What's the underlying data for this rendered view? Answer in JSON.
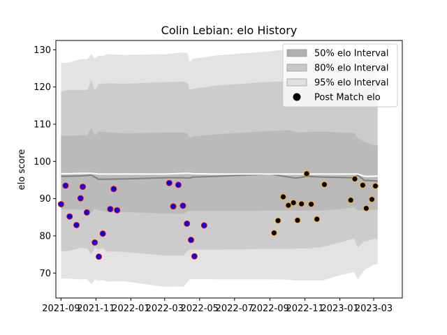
{
  "chart_data": {
    "type": "scatter",
    "title": "Colin Lebian: elo History",
    "xlabel": "",
    "ylabel": "elo score",
    "xlim": [
      "2021-08-23",
      "2023-04-20"
    ],
    "ylim": [
      63.3,
      132.5
    ],
    "x_ticks": [
      "2021-09-01",
      "2021-11-01",
      "2022-01-01",
      "2022-03-01",
      "2022-05-01",
      "2022-07-01",
      "2022-09-01",
      "2022-11-01",
      "2023-01-01",
      "2023-03-01"
    ],
    "x_tick_labels": [
      "2021-09",
      "2021-11",
      "2022-01",
      "2022-03",
      "2022-05",
      "2022-07",
      "2022-09",
      "2022-11",
      "2023-01",
      "2023-03"
    ],
    "y_ticks": [
      70,
      80,
      90,
      100,
      110,
      120,
      130
    ],
    "grid": false,
    "legend": {
      "placement": "top-right",
      "entries": [
        "50% elo Interval",
        "80% elo Interval",
        "95% elo Interval",
        "Post Match elo"
      ]
    },
    "bands": [
      {
        "name": "95% elo Interval",
        "color": "#e3e3e3",
        "x": [
          "2021-09-01",
          "2021-09-13",
          "2021-10-06",
          "2021-10-17",
          "2021-10-24",
          "2021-10-30",
          "2021-11-06",
          "2021-11-13",
          "2021-11-20",
          "2021-12-20",
          "2022-03-01",
          "2022-04-03",
          "2022-04-10",
          "2022-04-14",
          "2022-04-19",
          "2022-06-01",
          "2022-09-01",
          "2022-10-06",
          "2022-10-16",
          "2022-11-06",
          "2022-12-01",
          "2023-01-01",
          "2023-01-26",
          "2023-02-01",
          "2023-02-13",
          "2023-03-01",
          "2023-03-08"
        ],
        "upper": [
          126.5,
          126.5,
          127.5,
          127.5,
          128.8,
          127.7,
          128.4,
          128.3,
          128.8,
          128.6,
          128.8,
          129.3,
          129.1,
          126.6,
          127.6,
          128.5,
          129.6,
          130.2,
          128.8,
          128.9,
          129.0,
          129.3,
          129.5,
          127.8,
          126.8,
          127.5,
          127.5
        ],
        "lower": [
          68.5,
          68.5,
          68.3,
          68.3,
          67.0,
          68.3,
          67.9,
          68.1,
          67.7,
          67.8,
          66.3,
          66.4,
          67.6,
          68.3,
          68.4,
          68.3,
          68.3,
          68.2,
          68.0,
          68.0,
          68.0,
          69.4,
          70.3,
          68.3,
          70.8,
          72.2,
          72.4
        ]
      },
      {
        "name": "80% elo Interval",
        "color": "#cccccc",
        "x": [
          "2021-09-01",
          "2021-09-13",
          "2021-10-06",
          "2021-10-17",
          "2021-10-24",
          "2021-10-30",
          "2021-11-06",
          "2021-11-13",
          "2021-11-20",
          "2021-12-20",
          "2022-03-01",
          "2022-04-03",
          "2022-04-10",
          "2022-04-14",
          "2022-04-19",
          "2022-06-01",
          "2022-09-01",
          "2022-10-06",
          "2022-10-16",
          "2022-11-06",
          "2022-12-01",
          "2023-01-01",
          "2023-01-26",
          "2023-02-01",
          "2023-02-13",
          "2023-03-01",
          "2023-03-08"
        ],
        "upper": [
          118.8,
          119.2,
          119.2,
          119.2,
          121.9,
          119.0,
          120.8,
          120.9,
          121.0,
          120.9,
          121.3,
          121.5,
          121.0,
          119.2,
          119.5,
          120.4,
          121.4,
          121.5,
          120.8,
          120.8,
          121.0,
          121.1,
          121.0,
          120.3,
          119.9,
          120.4,
          120.4
        ],
        "lower": [
          75.9,
          75.9,
          76.8,
          76.5,
          75.0,
          76.7,
          76.3,
          76.7,
          75.8,
          75.7,
          74.7,
          74.7,
          76.0,
          76.3,
          76.3,
          76.3,
          76.5,
          76.5,
          76.6,
          76.6,
          77.0,
          78.2,
          79.3,
          76.9,
          78.5,
          79.2,
          79.2
        ]
      },
      {
        "name": "50% elo Interval",
        "color": "#bababa",
        "x": [
          "2021-09-01",
          "2021-09-13",
          "2021-10-06",
          "2021-10-17",
          "2021-10-24",
          "2021-10-30",
          "2021-11-06",
          "2021-11-13",
          "2021-11-20",
          "2021-12-20",
          "2022-03-01",
          "2022-04-03",
          "2022-04-10",
          "2022-04-14",
          "2022-04-19",
          "2022-06-01",
          "2022-09-01",
          "2022-10-06",
          "2022-10-16",
          "2022-11-06",
          "2022-12-01",
          "2023-01-01",
          "2023-01-26",
          "2023-02-01",
          "2023-02-13",
          "2023-03-01",
          "2023-03-08"
        ],
        "upper": [
          106.9,
          106.9,
          107.0,
          107.0,
          109.0,
          106.9,
          108.1,
          107.9,
          107.9,
          107.5,
          107.8,
          107.8,
          107.5,
          106.3,
          106.7,
          107.3,
          108.2,
          108.4,
          107.8,
          107.9,
          108.0,
          107.8,
          107.7,
          106.4,
          105.3,
          104.3,
          104.3
        ],
        "lower": [
          87.1,
          87.2,
          87.0,
          87.1,
          86.1,
          87.4,
          86.8,
          86.7,
          86.4,
          86.4,
          86.0,
          85.9,
          86.6,
          86.6,
          86.8,
          86.7,
          86.8,
          86.8,
          86.8,
          86.8,
          86.8,
          87.2,
          87.7,
          86.9,
          86.8,
          87.0,
          87.0
        ]
      }
    ],
    "mean_line": {
      "color": "#808080",
      "x": [
        "2021-09-01",
        "2021-09-13",
        "2021-10-06",
        "2021-10-24",
        "2021-11-06",
        "2021-12-20",
        "2022-03-01",
        "2022-04-03",
        "2022-04-14",
        "2022-04-19",
        "2022-06-01",
        "2022-09-01",
        "2022-10-16",
        "2022-11-06",
        "2022-12-01",
        "2023-01-01",
        "2023-01-26",
        "2023-02-01",
        "2023-02-13",
        "2023-03-01",
        "2023-03-08"
      ],
      "y": [
        96.0,
        96.0,
        96.1,
        96.3,
        95.2,
        95.3,
        95.6,
        95.6,
        95.5,
        95.8,
        96.0,
        96.6,
        95.5,
        96.0,
        95.8,
        95.7,
        95.6,
        96.3,
        94.9,
        94.8,
        94.7
      ]
    },
    "upper_line": {
      "color": "#ffffff",
      "x": [
        "2021-09-01",
        "2021-09-13",
        "2021-10-06",
        "2021-10-24",
        "2021-11-06",
        "2021-12-20",
        "2022-03-01",
        "2022-04-03",
        "2022-04-14",
        "2022-04-19",
        "2022-06-01",
        "2022-09-01",
        "2022-10-16",
        "2022-11-06",
        "2022-12-01",
        "2023-01-01",
        "2023-01-26",
        "2023-02-01",
        "2023-02-13",
        "2023-03-01",
        "2023-03-08"
      ],
      "y": [
        96.7,
        96.7,
        96.8,
        96.8,
        96.6,
        96.6,
        96.6,
        96.8,
        96.8,
        96.7,
        96.6,
        96.6,
        96.6,
        96.6,
        96.6,
        96.6,
        96.6,
        96.6,
        96.0,
        96.0,
        96.1
      ]
    },
    "series": [
      {
        "name": "Post Match elo",
        "marker_fill": "#0000ee",
        "marker_edge": "#ff0000",
        "x": [
          "2021-09-01",
          "2021-09-09",
          "2021-09-16",
          "2021-09-28",
          "2021-10-05",
          "2021-10-09",
          "2021-10-16",
          "2021-10-30",
          "2021-11-06",
          "2021-11-13",
          "2021-11-26",
          "2021-12-02",
          "2021-12-08",
          "2022-03-09",
          "2022-03-16",
          "2022-03-25",
          "2022-04-02",
          "2022-04-09",
          "2022-04-16",
          "2022-04-22",
          "2022-05-09"
        ],
        "y": [
          88.5,
          93.5,
          85.2,
          82.9,
          90.1,
          93.2,
          86.3,
          78.2,
          74.4,
          80.6,
          87.2,
          92.6,
          86.9,
          94.2,
          87.9,
          93.7,
          88.1,
          83.3,
          78.9,
          74.5,
          82.8
        ]
      },
      {
        "name": "",
        "marker_fill": "#000000",
        "marker_edge": "#ffa500",
        "x": [
          "2022-09-08",
          "2022-09-15",
          "2022-09-24",
          "2022-10-03",
          "2022-10-12",
          "2022-10-19",
          "2022-10-26",
          "2022-11-04",
          "2022-11-12",
          "2022-11-22",
          "2022-12-05",
          "2023-01-20",
          "2023-01-27",
          "2023-02-10",
          "2023-02-16",
          "2023-02-26",
          "2023-03-04"
        ],
        "y": [
          80.8,
          84.1,
          90.5,
          88.2,
          88.9,
          84.2,
          88.6,
          96.7,
          88.5,
          84.5,
          93.8,
          89.6,
          95.3,
          93.6,
          87.4,
          89.8,
          93.4
        ]
      }
    ],
    "legend_marker": {
      "fill": "#000000"
    }
  }
}
